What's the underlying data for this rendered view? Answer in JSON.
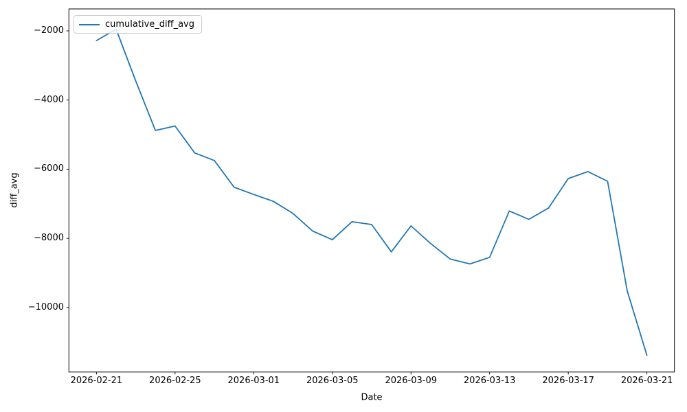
{
  "figure": {
    "background_color": "#ffffff",
    "axis_color": "#000000",
    "text_color": "#000000",
    "legend_border_color": "#cccccc"
  },
  "chart_data": {
    "type": "line",
    "title": "",
    "xlabel": "Date",
    "ylabel": "diff_avg",
    "grid": false,
    "legend_position": "upper left",
    "x": [
      "2026-02-21",
      "2026-02-22",
      "2026-02-23",
      "2026-02-24",
      "2026-02-25",
      "2026-02-26",
      "2026-02-27",
      "2026-02-28",
      "2026-03-01",
      "2026-03-02",
      "2026-03-03",
      "2026-03-04",
      "2026-03-05",
      "2026-03-06",
      "2026-03-07",
      "2026-03-08",
      "2026-03-09",
      "2026-03-10",
      "2026-03-11",
      "2026-03-12",
      "2026-03-13",
      "2026-03-14",
      "2026-03-15",
      "2026-03-16",
      "2026-03-17",
      "2026-03-18",
      "2026-03-19",
      "2026-03-20",
      "2026-03-21"
    ],
    "series": [
      {
        "name": "cumulative_diff_avg",
        "color": "#1f77b4",
        "values": [
          -2280,
          -1950,
          -3450,
          -4880,
          -4750,
          -5530,
          -5750,
          -6520,
          -6730,
          -6930,
          -7280,
          -7790,
          -8040,
          -7520,
          -7600,
          -8390,
          -7640,
          -8150,
          -8600,
          -8740,
          -8550,
          -7210,
          -7450,
          -7120,
          -6270,
          -6070,
          -6350,
          -9520,
          -11380
        ]
      }
    ],
    "x_tick_labels": [
      "2026-02-21",
      "2026-02-25",
      "2026-03-01",
      "2026-03-05",
      "2026-03-09",
      "2026-03-13",
      "2026-03-17",
      "2026-03-21"
    ],
    "y_tick_values": [
      -2000,
      -4000,
      -6000,
      -8000,
      -10000
    ],
    "y_tick_labels": [
      "−2000",
      "−4000",
      "−6000",
      "−8000",
      "−10000"
    ],
    "xlim_days": [
      -1.4,
      29.4
    ],
    "ylim": [
      -11866,
      -1365
    ]
  }
}
